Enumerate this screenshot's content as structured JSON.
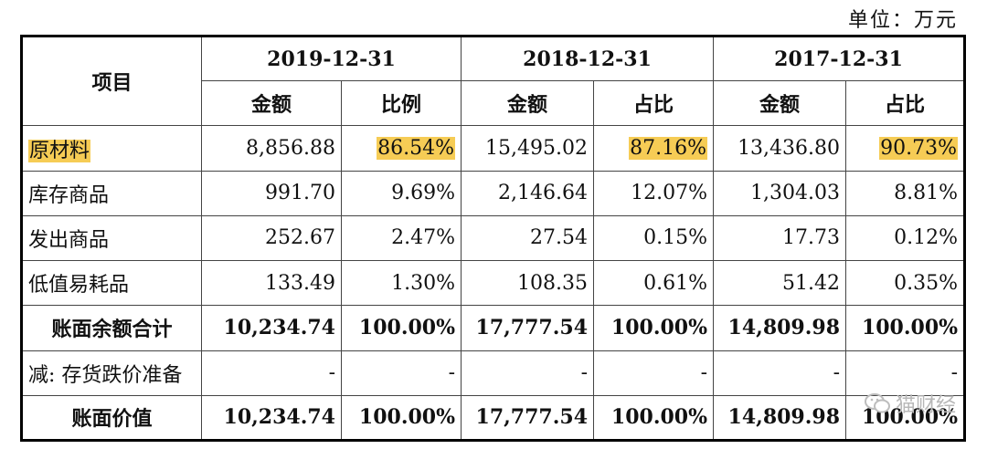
{
  "unit": "单位：万元",
  "header": {
    "item": "项目",
    "periods": [
      "2019-12-31",
      "2018-12-31",
      "2017-12-31"
    ],
    "sub": [
      "金额",
      "比例",
      "金额",
      "占比",
      "金额",
      "占比"
    ]
  },
  "rows": [
    {
      "label": "原材料",
      "c": [
        "8,856.88",
        "86.54%",
        "15,495.02",
        "87.16%",
        "13,436.80",
        "90.73%"
      ]
    },
    {
      "label": "库存商品",
      "c": [
        "991.70",
        "9.69%",
        "2,146.64",
        "12.07%",
        "1,304.03",
        "8.81%"
      ]
    },
    {
      "label": "发出商品",
      "c": [
        "252.67",
        "2.47%",
        "27.54",
        "0.15%",
        "17.73",
        "0.12%"
      ]
    },
    {
      "label": "低值易耗品",
      "c": [
        "133.49",
        "1.30%",
        "108.35",
        "0.61%",
        "51.42",
        "0.35%"
      ]
    },
    {
      "label": "账面余额合计",
      "c": [
        "10,234.74",
        "100.00%",
        "17,777.54",
        "100.00%",
        "14,809.98",
        "100.00%"
      ]
    },
    {
      "label": "减: 存货跌价准备",
      "c": [
        "-",
        "-",
        "-",
        "-",
        "-",
        "-"
      ]
    },
    {
      "label": "账面价值",
      "c": [
        "10,234.74",
        "100.00%",
        "17,777.54",
        "100.00%",
        "14,809.98",
        "100.00%"
      ]
    }
  ],
  "highlight_color": "#f6cc55",
  "watermark": {
    "text": "猫财经",
    "icon": "wechat-icon"
  }
}
